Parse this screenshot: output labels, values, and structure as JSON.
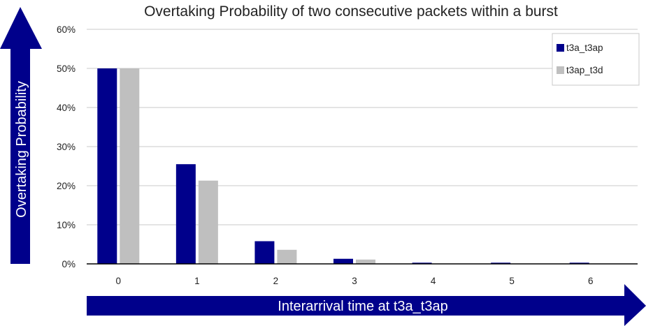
{
  "colors": {
    "series_1": "#00008b",
    "series_2": "#bfbfbf",
    "arrow": "#00008b",
    "grid": "#c8c8c8",
    "axis": "#000000"
  },
  "chart_data": {
    "type": "bar",
    "title": "Overtaking Probability of two consecutive packets within a burst",
    "xlabel": "Interarrival time at t3a_t3ap",
    "ylabel": "Overtaking Probability",
    "categories": [
      "0",
      "1",
      "2",
      "3",
      "4",
      "5",
      "6"
    ],
    "series": [
      {
        "name": "t3a_t3ap",
        "values": [
          50,
          25.5,
          5.8,
          1.3,
          0.3,
          0.3,
          0.3
        ]
      },
      {
        "name": "t3ap_t3d",
        "values": [
          50,
          21.3,
          3.6,
          1.1,
          0,
          0,
          0
        ]
      }
    ],
    "ylim": [
      0,
      60
    ],
    "yticks": [
      0,
      10,
      20,
      30,
      40,
      50,
      60
    ],
    "ytick_labels": [
      "0%",
      "10%",
      "20%",
      "30%",
      "40%",
      "50%",
      "60%"
    ],
    "grid": true,
    "legend": "top-right"
  }
}
